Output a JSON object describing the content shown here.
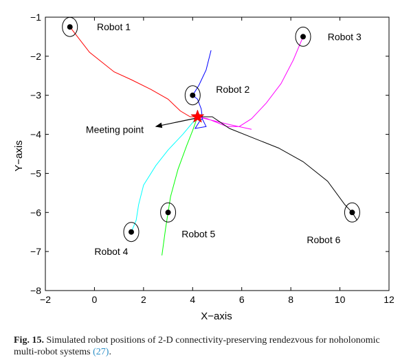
{
  "chart_data": {
    "type": "line",
    "xlabel": "X−axis",
    "ylabel": "Y−axis",
    "xlim": [
      -2,
      12
    ],
    "ylim": [
      -8,
      -1
    ],
    "x_ticks": [
      -2,
      0,
      2,
      4,
      6,
      8,
      10,
      12
    ],
    "y_ticks": [
      -1,
      -2,
      -3,
      -4,
      -5,
      -6,
      -7,
      -8
    ],
    "x_tick_labels": [
      "−2",
      "0",
      "2",
      "4",
      "6",
      "8",
      "10",
      "12"
    ],
    "y_tick_labels": [
      "−1",
      "−2",
      "−3",
      "−4",
      "−5",
      "−6",
      "−7",
      "−8"
    ],
    "grid": false,
    "series": [
      {
        "name": "Robot 1",
        "color": "#ff0000",
        "label_pos": [
          0.1,
          -1.25
        ],
        "start": [
          -1.0,
          -1.25
        ],
        "path": [
          [
            -1.0,
            -1.25
          ],
          [
            -0.2,
            -1.9
          ],
          [
            0.8,
            -2.4
          ],
          [
            1.5,
            -2.6
          ],
          [
            2.3,
            -2.85
          ],
          [
            3.0,
            -3.1
          ],
          [
            3.5,
            -3.4
          ],
          [
            3.9,
            -3.55
          ],
          [
            4.2,
            -3.55
          ]
        ]
      },
      {
        "name": "Robot 2",
        "color": "#0000ff",
        "label_pos": [
          4.95,
          -2.85
        ],
        "start": [
          4.0,
          -3.0
        ],
        "path": [
          [
            4.75,
            -1.85
          ],
          [
            4.55,
            -2.35
          ],
          [
            4.25,
            -2.75
          ],
          [
            4.0,
            -3.0
          ],
          [
            4.2,
            -3.1
          ],
          [
            4.35,
            -3.35
          ],
          [
            4.4,
            -3.6
          ],
          [
            4.3,
            -3.65
          ],
          [
            4.1,
            -3.85
          ],
          [
            4.55,
            -3.8
          ],
          [
            4.35,
            -3.55
          ],
          [
            4.2,
            -3.55
          ]
        ]
      },
      {
        "name": "Robot 3",
        "color": "#ff00ff",
        "label_pos": [
          9.5,
          -1.5
        ],
        "start": [
          8.5,
          -1.5
        ],
        "path": [
          [
            8.5,
            -1.5
          ],
          [
            8.1,
            -2.1
          ],
          [
            7.6,
            -2.7
          ],
          [
            7.0,
            -3.2
          ],
          [
            6.4,
            -3.6
          ],
          [
            5.9,
            -3.8
          ],
          [
            5.4,
            -3.8
          ],
          [
            5.0,
            -3.7
          ],
          [
            4.6,
            -3.6
          ],
          [
            4.2,
            -3.55
          ],
          [
            5.5,
            -3.75
          ],
          [
            6.4,
            -3.87
          ]
        ]
      },
      {
        "name": "Robot 4",
        "color": "#00ffff",
        "label_pos": [
          0.0,
          -7.0
        ],
        "start": [
          1.5,
          -6.5
        ],
        "path": [
          [
            1.5,
            -6.5
          ],
          [
            1.7,
            -6.2
          ],
          [
            1.8,
            -5.8
          ],
          [
            2.0,
            -5.3
          ],
          [
            2.5,
            -4.8
          ],
          [
            3.0,
            -4.4
          ],
          [
            3.6,
            -4.0
          ],
          [
            4.2,
            -3.55
          ]
        ]
      },
      {
        "name": "Robot 5",
        "color": "#00ff00",
        "label_pos": [
          3.55,
          -6.55
        ],
        "start": [
          3.0,
          -6.0
        ],
        "path": [
          [
            2.75,
            -7.1
          ],
          [
            2.9,
            -6.4
          ],
          [
            3.1,
            -5.6
          ],
          [
            3.4,
            -4.9
          ],
          [
            3.75,
            -4.3
          ],
          [
            4.0,
            -3.9
          ],
          [
            4.2,
            -3.55
          ]
        ]
      },
      {
        "name": "Robot 6",
        "color": "#000000",
        "label_pos": [
          8.65,
          -6.7
        ],
        "start": [
          10.5,
          -6.0
        ],
        "path": [
          [
            10.7,
            -6.2
          ],
          [
            10.5,
            -6.0
          ],
          [
            10.2,
            -5.8
          ],
          [
            9.5,
            -5.2
          ],
          [
            8.5,
            -4.7
          ],
          [
            7.5,
            -4.35
          ],
          [
            6.5,
            -4.1
          ],
          [
            5.5,
            -3.85
          ],
          [
            4.8,
            -3.55
          ],
          [
            4.2,
            -3.55
          ]
        ]
      }
    ],
    "meeting_point": {
      "x": 4.2,
      "y": -3.55,
      "label": "Meeting point",
      "label_pos": [
        -0.35,
        -3.88
      ],
      "arrow_to": [
        2.5,
        -3.8
      ]
    }
  },
  "caption": {
    "label": "Fig. 15.",
    "text": "Simulated robot positions of 2-D connectivity-preserving rendezvous for noholonomic multi-robot systems",
    "ref": "(27)",
    "end": "."
  }
}
